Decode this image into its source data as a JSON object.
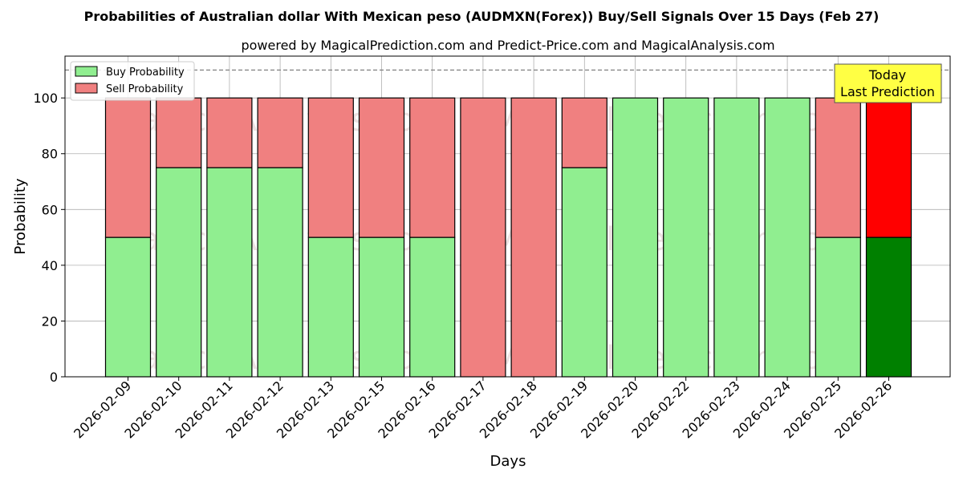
{
  "chart_data": {
    "type": "bar",
    "stacked": true,
    "title": "Probabilities of Australian dollar With Mexican peso (AUDMXN(Forex)) Buy/Sell Signals Over 15 Days (Feb 27)",
    "subtitle": "powered by MagicalPrediction.com and Predict-Price.com and MagicalAnalysis.com",
    "xlabel": "Days",
    "ylabel": "Probability",
    "ylim": [
      0,
      115
    ],
    "yticks": [
      0,
      20,
      40,
      60,
      80,
      100
    ],
    "reference_line": 110,
    "grid": true,
    "legend_position": "top-left",
    "categories": [
      "2026-02-09",
      "2026-02-10",
      "2026-02-11",
      "2026-02-12",
      "2026-02-13",
      "2026-02-15",
      "2026-02-16",
      "2026-02-17",
      "2026-02-18",
      "2026-02-19",
      "2026-02-20",
      "2026-02-22",
      "2026-02-23",
      "2026-02-24",
      "2026-02-25",
      "2026-02-26"
    ],
    "series": [
      {
        "name": "Buy Probability",
        "values": [
          50,
          75,
          75,
          75,
          50,
          50,
          50,
          0,
          0,
          75,
          100,
          100,
          100,
          100,
          50,
          50
        ],
        "color": "#90ee90",
        "today_color": "#008000"
      },
      {
        "name": "Sell Probability",
        "values": [
          50,
          25,
          25,
          25,
          50,
          50,
          50,
          100,
          100,
          25,
          0,
          0,
          0,
          0,
          50,
          50
        ],
        "color": "#f08080",
        "today_color": "#ff0000"
      }
    ],
    "annotation": {
      "line1": "Today",
      "line2": "Last Prediction",
      "color": "#ffff44"
    },
    "watermarks": [
      "MagicalAnalysis.com",
      "MagicalPrediction.com"
    ]
  }
}
